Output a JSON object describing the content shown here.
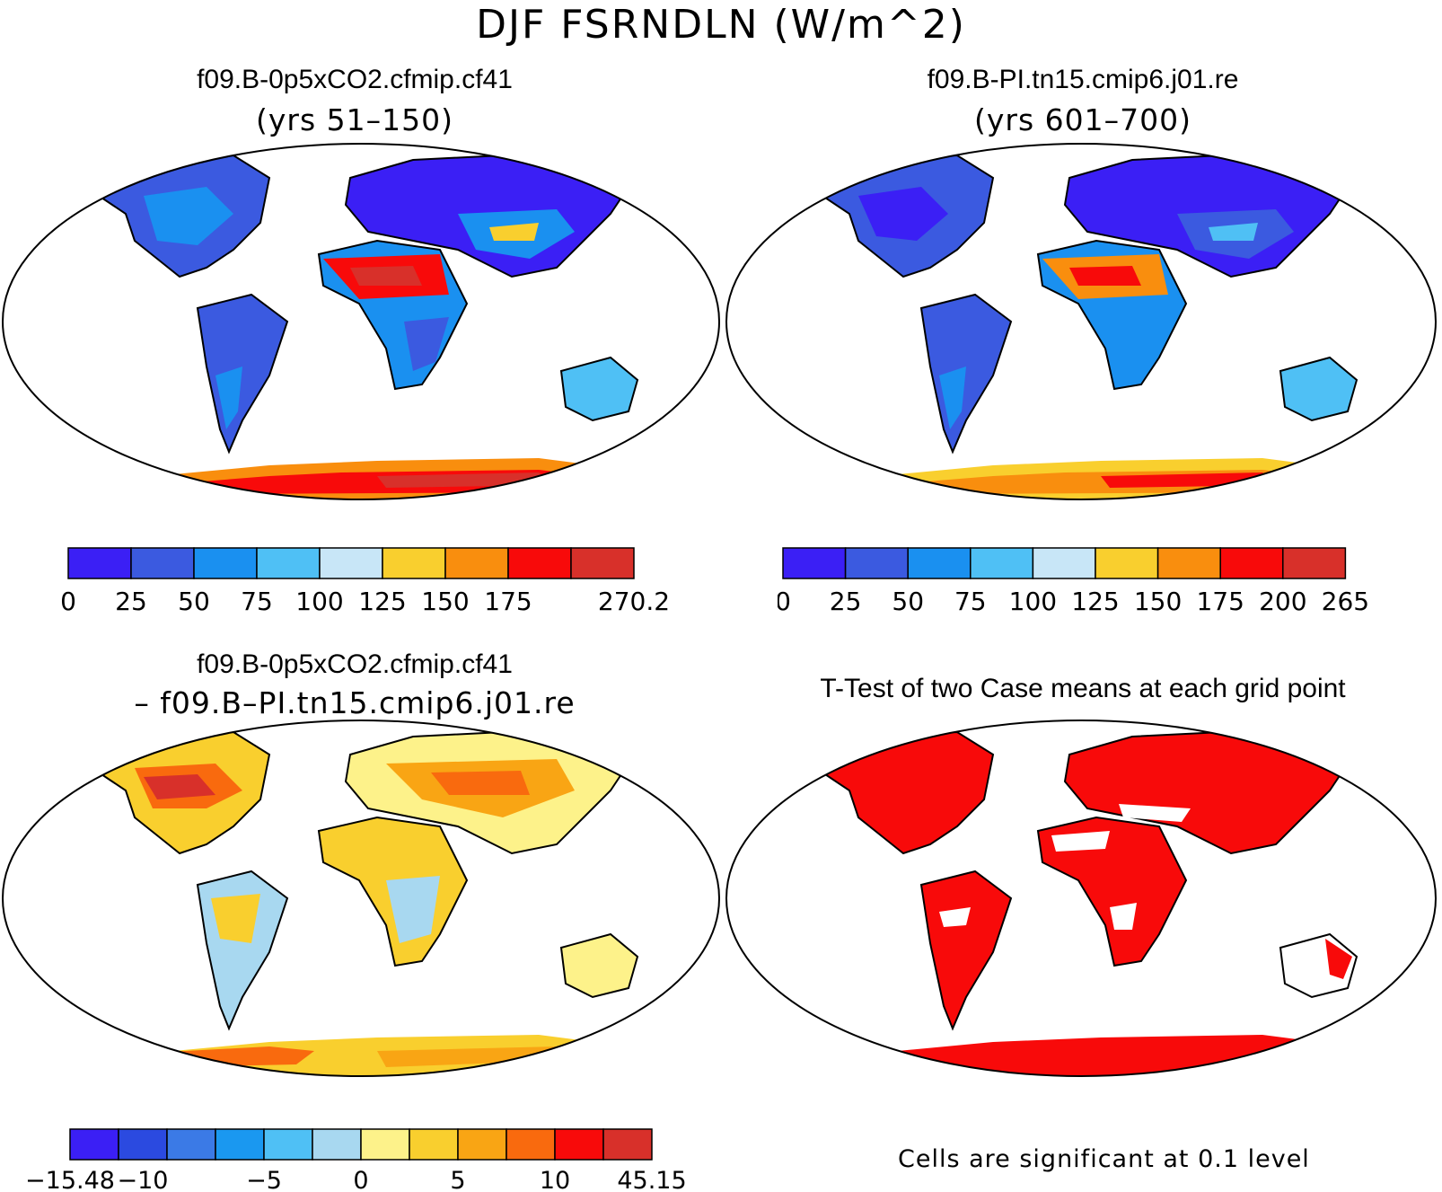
{
  "title": "DJF FSRNDLN (W/m^2)",
  "panels": [
    {
      "id": "case1",
      "title": "f09.B-0p5xCO2.cfmip.cf41",
      "subtitle": "(yrs 51–150)"
    },
    {
      "id": "case2",
      "title": "f09.B-PI.tn15.cmip6.j01.re",
      "subtitle": "(yrs 601–700)"
    },
    {
      "id": "diff",
      "title": "f09.B-0p5xCO2.cfmip.cf41",
      "subtitle": "– f09.B–PI.tn15.cmip6.j01.re"
    },
    {
      "id": "ttest",
      "title": "T-Test of two Case means at each grid point",
      "subtitle": ""
    }
  ],
  "colorbars": {
    "case1": {
      "colors": [
        "#3b1ff5",
        "#3b5ae0",
        "#1a90f0",
        "#4fc0f5",
        "#c8e6f7",
        "#f9cf2e",
        "#f98e0e",
        "#f80a0a",
        "#d8302a"
      ],
      "labels": [
        "0",
        "25",
        "50",
        "75",
        "100",
        "125",
        "150",
        "175",
        "270.2"
      ],
      "label_slots": [
        0,
        1,
        2,
        3,
        4,
        5,
        6,
        7,
        9
      ]
    },
    "case2": {
      "colors": [
        "#3b1ff5",
        "#3b5ae0",
        "#1a90f0",
        "#4fc0f5",
        "#c8e6f7",
        "#f9cf2e",
        "#f98e0e",
        "#f80a0a",
        "#d8302a"
      ],
      "labels": [
        "0",
        "25",
        "50",
        "75",
        "100",
        "125",
        "150",
        "175",
        "200",
        "265"
      ],
      "label_slots": [
        0,
        1,
        2,
        3,
        4,
        5,
        6,
        7,
        8,
        9
      ]
    },
    "diff": {
      "colors": [
        "#3b1ff5",
        "#2b4ae0",
        "#3b7ae6",
        "#1a98f0",
        "#4fc0f5",
        "#a8d8f0",
        "#fdf28a",
        "#f9cf2e",
        "#f9a514",
        "#f96a0e",
        "#f80a0a",
        "#d8302a"
      ],
      "labels": [
        "−15.48",
        "−10",
        "−5",
        "0",
        "5",
        "10",
        "45.15"
      ],
      "label_slots": [
        0,
        1.5,
        4,
        6,
        8,
        10,
        12
      ]
    }
  },
  "footnote": "Cells are significant at 0.1 level"
}
